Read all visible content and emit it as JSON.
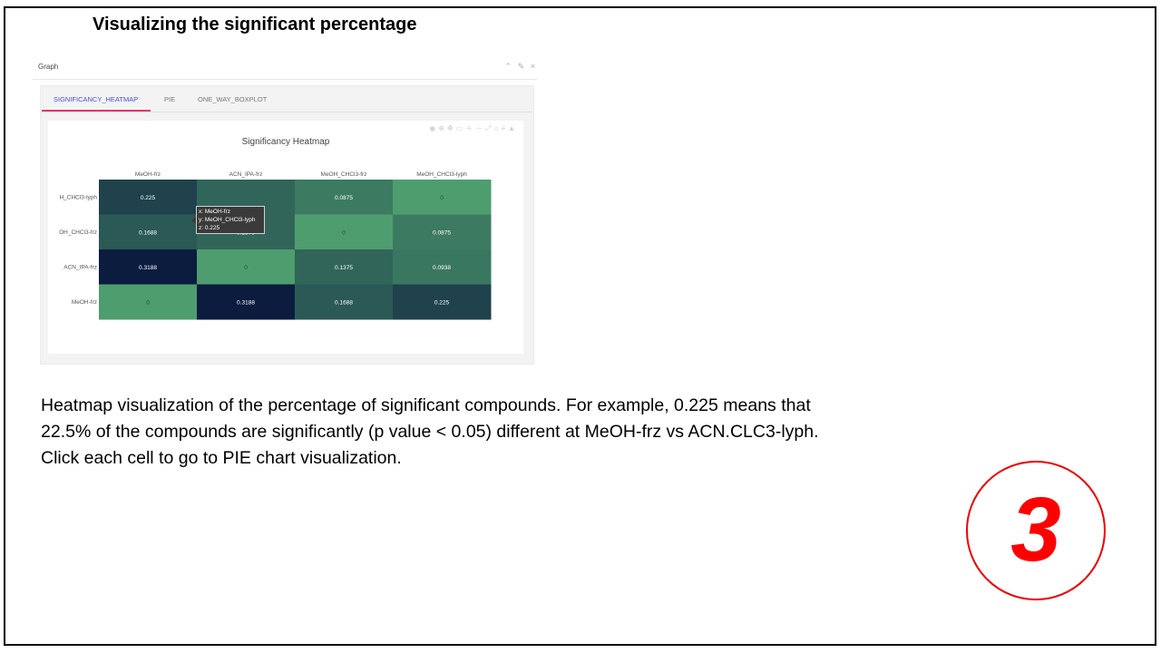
{
  "slide": {
    "title": "Visualizing the significant percentage",
    "caption_lines": [
      "Heatmap visualization of the percentage of significant compounds. For example, 0.225 means that",
      "22.5% of the compounds are significantly (p value < 0.05) different at MeOH-frz vs ACN.CLC3-lyph.",
      "Click each cell to go to PIE chart visualization."
    ],
    "step_number": "3",
    "accent_color": "#ff0000"
  },
  "panel": {
    "title": "Graph",
    "controls": [
      "chevron-up-icon",
      "pin-icon",
      "close-icon"
    ],
    "control_glyphs": [
      "⌃",
      "✎",
      "×"
    ]
  },
  "tabs": [
    {
      "label": "SIGNIFICANCY_HEATMAP",
      "active": true
    },
    {
      "label": "PIE",
      "active": false
    },
    {
      "label": "ONE_WAY_BOXPLOT",
      "active": false
    }
  ],
  "tooltip": {
    "line_x": "x: MeOH-frz",
    "line_y": "y: MeOH_CHCl3-lyph",
    "line_z": "z: 0.225"
  },
  "chart_data": {
    "type": "heatmap",
    "title": "Significancy Heatmap",
    "x": [
      "MeOH-frz",
      "ACN_IPA-frz",
      "MeOH_CHCl3-frz",
      "MeOH_CHCl3-lyph"
    ],
    "y": [
      "H_CHCl3-lyph",
      "OH_CHCl3-frz",
      "ACN_IPA-frz",
      "MeOH-frz"
    ],
    "z": [
      [
        0.225,
        0.1375,
        0.0875,
        0
      ],
      [
        0.1688,
        0.1375,
        0,
        0.0875
      ],
      [
        0.3188,
        0,
        0.1375,
        0.0938
      ],
      [
        0,
        0.3188,
        0.1688,
        0.225
      ]
    ],
    "z_labels": [
      [
        "0.225",
        "",
        "0.0875",
        "0"
      ],
      [
        "0.1688",
        "0.1375",
        "0",
        "0.0875"
      ],
      [
        "0.3188",
        "0",
        "0.1375",
        "0.0938"
      ],
      [
        "0",
        "0.3188",
        "0.1688",
        "0.225"
      ]
    ],
    "colorscale_low": "#4e9d6e",
    "colorscale_high": "#0b1c3f",
    "zmax": 0.3188,
    "legend": "none"
  }
}
